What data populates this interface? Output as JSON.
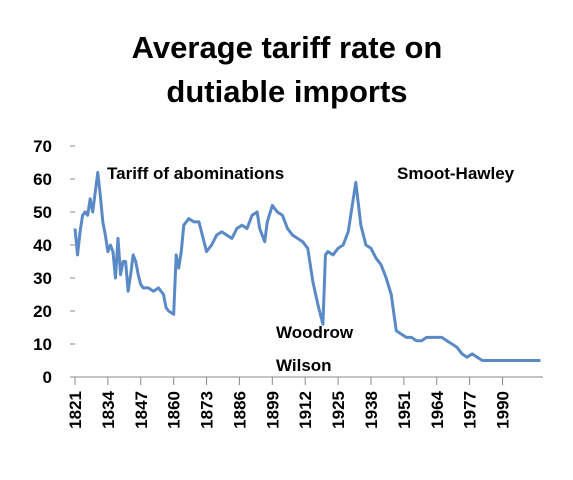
{
  "chart_data": {
    "type": "line",
    "title": [
      "Average tariff rate on",
      "dutiable imports"
    ],
    "x": [
      1821,
      1822,
      1823,
      1824,
      1825,
      1826,
      1827,
      1828,
      1829,
      1830,
      1831,
      1832,
      1833,
      1834,
      1835,
      1836,
      1837,
      1838,
      1839,
      1840,
      1841,
      1842,
      1843,
      1844,
      1845,
      1846,
      1847,
      1848,
      1850,
      1852,
      1854,
      1856,
      1857,
      1858,
      1860,
      1861,
      1862,
      1863,
      1864,
      1866,
      1868,
      1870,
      1872,
      1873,
      1875,
      1877,
      1879,
      1881,
      1883,
      1885,
      1887,
      1889,
      1891,
      1893,
      1894,
      1896,
      1897,
      1899,
      1901,
      1903,
      1905,
      1907,
      1909,
      1911,
      1913,
      1915,
      1917,
      1919,
      1920,
      1921,
      1923,
      1925,
      1927,
      1929,
      1932,
      1934,
      1936,
      1938,
      1940,
      1942,
      1944,
      1946,
      1948,
      1950,
      1952,
      1954,
      1956,
      1958,
      1960,
      1962,
      1964,
      1966,
      1968,
      1970,
      1972,
      1974,
      1976,
      1978,
      1980,
      1982,
      1984,
      1986,
      1988,
      1990,
      1992,
      1994,
      1996,
      1998,
      2000,
      2002,
      2004,
      2005
    ],
    "series": [
      {
        "name": "Average tariff rate",
        "color": "#5a8ac6",
        "values": [
          45,
          37,
          44,
          49,
          50,
          49,
          54,
          50,
          56,
          62,
          55,
          47,
          43,
          38,
          40,
          38,
          30,
          42,
          31,
          35,
          35,
          26,
          31,
          37,
          35,
          31,
          28,
          27,
          27,
          26,
          27,
          25,
          21,
          20,
          19,
          37,
          33,
          38,
          46,
          48,
          47,
          47,
          41,
          38,
          40,
          43,
          44,
          43,
          42,
          45,
          46,
          45,
          49,
          50,
          45,
          41,
          47,
          52,
          50,
          49,
          45,
          43,
          42,
          41,
          39,
          29,
          22,
          16,
          37,
          38,
          37,
          39,
          40,
          44,
          59,
          46,
          40,
          39,
          36,
          34,
          30,
          25,
          14,
          13,
          12,
          12,
          11,
          11,
          12,
          12,
          12,
          12,
          11,
          10,
          9,
          7,
          6,
          7,
          6,
          5,
          5,
          5,
          5,
          5,
          5,
          5,
          5,
          5,
          5,
          5,
          5,
          5
        ]
      }
    ],
    "xlim": [
      1821,
      2006
    ],
    "xticks": [
      1821,
      1834,
      1847,
      1860,
      1873,
      1886,
      1899,
      1912,
      1925,
      1938,
      1951,
      1964,
      1977,
      1990
    ],
    "ylim": [
      0,
      70
    ],
    "yticks": [
      0,
      10,
      20,
      30,
      40,
      50,
      60,
      70
    ],
    "annotations": [
      {
        "text": "Tariff of abominations"
      },
      {
        "text": "Smoot-Hawley"
      },
      {
        "lines": [
          "Woodrow",
          "Wilson"
        ]
      }
    ]
  }
}
